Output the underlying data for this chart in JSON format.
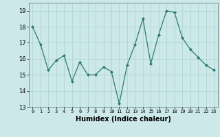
{
  "x": [
    0,
    1,
    2,
    3,
    4,
    5,
    6,
    7,
    8,
    9,
    10,
    11,
    12,
    13,
    14,
    15,
    16,
    17,
    18,
    19,
    20,
    21,
    22,
    23
  ],
  "y": [
    18.0,
    16.9,
    15.3,
    15.9,
    16.2,
    14.6,
    15.8,
    15.0,
    15.0,
    15.5,
    15.2,
    13.2,
    15.6,
    16.9,
    18.5,
    15.7,
    17.5,
    19.0,
    18.9,
    17.3,
    16.6,
    16.1,
    15.6,
    15.3
  ],
  "xlabel": "Humidex (Indice chaleur)",
  "ylim": [
    13,
    19.5
  ],
  "yticks": [
    13,
    14,
    15,
    16,
    17,
    18,
    19
  ],
  "xticks": [
    0,
    1,
    2,
    3,
    4,
    5,
    6,
    7,
    8,
    9,
    10,
    11,
    12,
    13,
    14,
    15,
    16,
    17,
    18,
    19,
    20,
    21,
    22,
    23
  ],
  "line_color": "#2d7a6e",
  "marker": "D",
  "marker_size": 2,
  "bg_color": "#cce8e8",
  "grid_color": "#afd4d4",
  "xlabel_fontsize": 7,
  "tick_fontsize": 5,
  "ytick_fontsize": 6
}
